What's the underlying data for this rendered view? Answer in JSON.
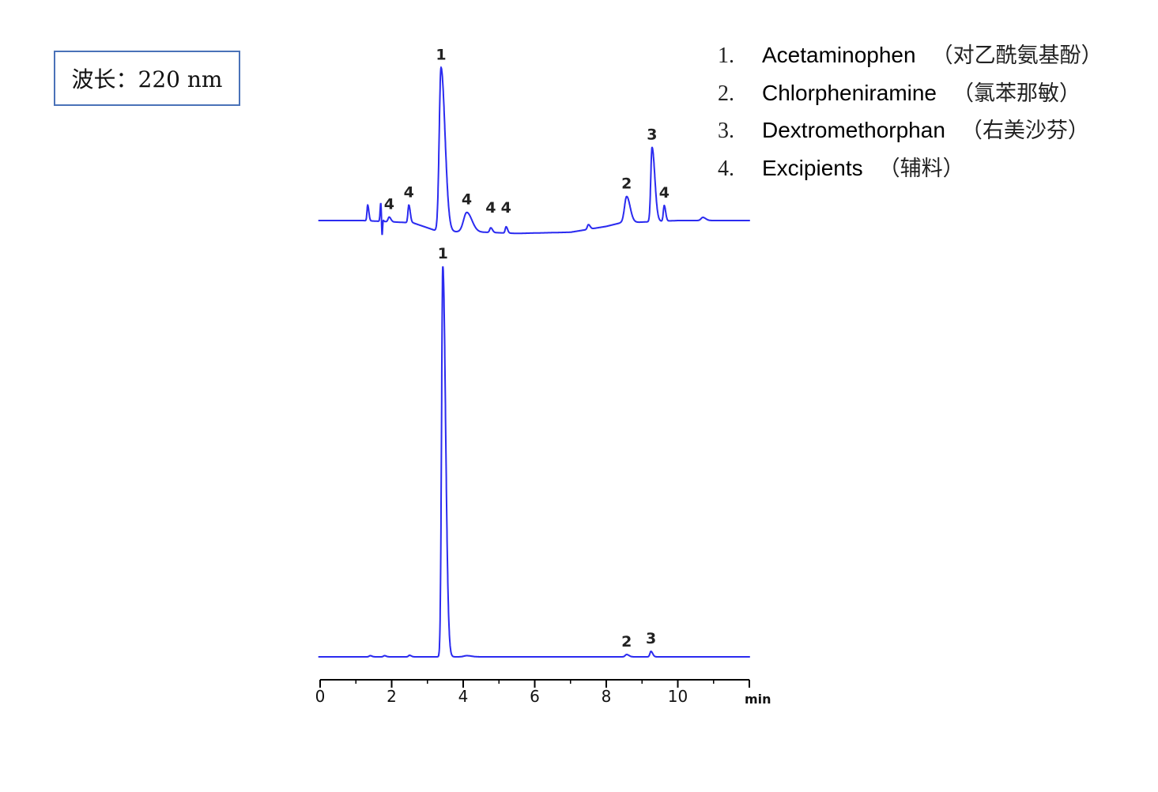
{
  "wavelength_label": "波长：220 nm",
  "legend": [
    {
      "num": "1.",
      "name": "Acetaminophen",
      "cn": "（对乙酰氨基酚）"
    },
    {
      "num": "2.",
      "name": "Chlorpheniramine",
      "cn": "（氯苯那敏）"
    },
    {
      "num": "3.",
      "name": "Dextromethorphan",
      "cn": "（右美沙芬）"
    },
    {
      "num": "4.",
      "name": "Excipients",
      "cn": "（辅料）"
    }
  ],
  "chart_data": {
    "type": "line",
    "xlabel": "min",
    "xlim": [
      0,
      12
    ],
    "xticks": [
      0,
      2,
      4,
      6,
      8,
      10,
      12
    ],
    "xtick_labels": [
      "0",
      "2",
      "4",
      "6",
      "8",
      "10",
      ""
    ],
    "line_color": "#2b2bf0",
    "grid": false,
    "series": [
      {
        "baseline": [
          [
            0,
            0
          ],
          [
            1.2,
            0
          ],
          [
            2.6,
            -0.6
          ],
          [
            3.3,
            -2.8
          ],
          [
            4.6,
            -3.0
          ],
          [
            5.5,
            -3.3
          ],
          [
            7,
            -3.0
          ],
          [
            8,
            -1.5
          ],
          [
            8.4,
            -0.6
          ],
          [
            9,
            -0.4
          ],
          [
            10,
            0
          ],
          [
            12,
            0
          ]
        ],
        "peaks": [
          {
            "t": 1.33,
            "h": 4.0,
            "w": 0.02,
            "label": ""
          },
          {
            "t": 1.7,
            "h": 5.3,
            "w": 0.02,
            "label": ""
          },
          {
            "t": 1.73,
            "h": -6.7,
            "w": 0.015,
            "label": ""
          },
          {
            "t": 1.93,
            "h": 1.2,
            "w": 0.03,
            "label": "4"
          },
          {
            "t": 2.48,
            "h": 4.5,
            "w": 0.025,
            "label": "4"
          },
          {
            "t": 3.38,
            "h": 42,
            "w": 0.05,
            "label": "1"
          },
          {
            "t": 4.1,
            "h": 5.0,
            "w": 0.09,
            "label": "4"
          },
          {
            "t": 4.77,
            "h": 1.2,
            "w": 0.03,
            "label": "4"
          },
          {
            "t": 5.2,
            "h": 1.6,
            "w": 0.025,
            "label": "4"
          },
          {
            "t": 7.5,
            "h": 1.2,
            "w": 0.03,
            "label": ""
          },
          {
            "t": 8.57,
            "h": 6.7,
            "w": 0.06,
            "label": "2"
          },
          {
            "t": 9.28,
            "h": 19,
            "w": 0.035,
            "label": "3"
          },
          {
            "t": 9.62,
            "h": 4.0,
            "w": 0.025,
            "label": "4"
          },
          {
            "t": 10.7,
            "h": 0.8,
            "w": 0.05,
            "label": ""
          }
        ]
      },
      {
        "baseline": [
          [
            0,
            0
          ],
          [
            12,
            0
          ]
        ],
        "peaks": [
          {
            "t": 1.4,
            "h": 0.3,
            "w": 0.03,
            "label": ""
          },
          {
            "t": 1.8,
            "h": 0.3,
            "w": 0.03,
            "label": ""
          },
          {
            "t": 2.5,
            "h": 0.4,
            "w": 0.03,
            "label": ""
          },
          {
            "t": 3.43,
            "h": 100,
            "w": 0.035,
            "label": "1"
          },
          {
            "t": 4.1,
            "h": 0.3,
            "w": 0.08,
            "label": ""
          },
          {
            "t": 8.57,
            "h": 0.6,
            "w": 0.04,
            "label": "2"
          },
          {
            "t": 9.25,
            "h": 1.4,
            "w": 0.03,
            "label": "3"
          }
        ]
      }
    ]
  }
}
